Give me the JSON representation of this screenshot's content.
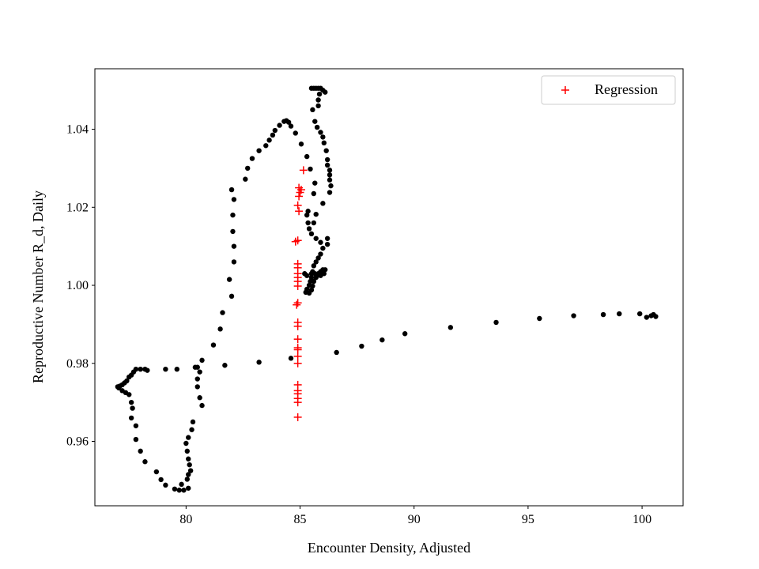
{
  "chart_data": {
    "type": "scatter",
    "xlabel": "Encounter Density, Adjusted",
    "ylabel": "Reproductive Number R_d, Daily",
    "xlim": [
      76.0,
      101.8
    ],
    "ylim": [
      0.9435,
      1.0555
    ],
    "xticks": [
      80,
      85,
      90,
      95,
      100
    ],
    "yticks": [
      0.96,
      0.98,
      1.0,
      1.02,
      1.04
    ],
    "ytick_labels": [
      "0.96",
      "0.98",
      "1.00",
      "1.02",
      "1.04"
    ],
    "grid": false,
    "legend": {
      "placement": "top-right",
      "entries": [
        {
          "label": "Regression",
          "series": 1
        }
      ]
    },
    "series": [
      {
        "marker": "dot",
        "color": "#000000",
        "points": [
          [
            100.6,
            0.992
          ],
          [
            100.5,
            0.9925
          ],
          [
            100.4,
            0.9922
          ],
          [
            100.2,
            0.9918
          ],
          [
            99.9,
            0.9927
          ],
          [
            99.0,
            0.9927
          ],
          [
            98.3,
            0.9925
          ],
          [
            97.0,
            0.9922
          ],
          [
            95.5,
            0.9915
          ],
          [
            93.6,
            0.9905
          ],
          [
            91.6,
            0.9892
          ],
          [
            89.6,
            0.9876
          ],
          [
            88.6,
            0.986
          ],
          [
            87.7,
            0.9844
          ],
          [
            86.6,
            0.9828
          ],
          [
            84.6,
            0.9813
          ],
          [
            83.2,
            0.9803
          ],
          [
            81.7,
            0.9795
          ],
          [
            80.7,
            0.9808
          ],
          [
            80.6,
            0.9778
          ],
          [
            80.4,
            0.979
          ],
          [
            79.6,
            0.9785
          ],
          [
            79.1,
            0.9785
          ],
          [
            78.3,
            0.9782
          ],
          [
            78.2,
            0.9785
          ],
          [
            78.0,
            0.9785
          ],
          [
            77.8,
            0.9785
          ],
          [
            77.7,
            0.9778
          ],
          [
            77.6,
            0.977
          ],
          [
            77.5,
            0.9765
          ],
          [
            77.4,
            0.9755
          ],
          [
            77.3,
            0.975
          ],
          [
            77.2,
            0.9745
          ],
          [
            77.1,
            0.9742
          ],
          [
            77.0,
            0.974
          ],
          [
            77.05,
            0.9737
          ],
          [
            77.2,
            0.973
          ],
          [
            77.35,
            0.9725
          ],
          [
            77.5,
            0.972
          ],
          [
            77.6,
            0.97
          ],
          [
            77.65,
            0.9685
          ],
          [
            77.6,
            0.966
          ],
          [
            77.8,
            0.964
          ],
          [
            77.8,
            0.9605
          ],
          [
            78.0,
            0.9575
          ],
          [
            78.2,
            0.9548
          ],
          [
            78.7,
            0.9522
          ],
          [
            78.9,
            0.9502
          ],
          [
            79.1,
            0.9488
          ],
          [
            79.5,
            0.9478
          ],
          [
            79.7,
            0.9475
          ],
          [
            79.8,
            0.949
          ],
          [
            79.9,
            0.9475
          ],
          [
            80.1,
            0.948
          ],
          [
            80.05,
            0.9503
          ],
          [
            80.1,
            0.9515
          ],
          [
            80.2,
            0.9525
          ],
          [
            80.15,
            0.954
          ],
          [
            80.1,
            0.9555
          ],
          [
            80.05,
            0.9575
          ],
          [
            80.0,
            0.9595
          ],
          [
            80.1,
            0.961
          ],
          [
            80.25,
            0.963
          ],
          [
            80.3,
            0.965
          ],
          [
            80.7,
            0.9692
          ],
          [
            80.6,
            0.9712
          ],
          [
            80.5,
            0.974
          ],
          [
            80.5,
            0.976
          ],
          [
            80.5,
            0.979
          ],
          [
            81.2,
            0.9847
          ],
          [
            81.5,
            0.9888
          ],
          [
            81.6,
            0.993
          ],
          [
            82.0,
            0.9972
          ],
          [
            81.9,
            1.0015
          ],
          [
            82.1,
            1.006
          ],
          [
            82.1,
            1.01
          ],
          [
            82.05,
            1.0138
          ],
          [
            82.05,
            1.018
          ],
          [
            82.1,
            1.022
          ],
          [
            82.0,
            1.0245
          ],
          [
            82.6,
            1.0272
          ],
          [
            82.7,
            1.03
          ],
          [
            82.9,
            1.0325
          ],
          [
            83.2,
            1.0345
          ],
          [
            83.5,
            1.0358
          ],
          [
            83.65,
            1.0372
          ],
          [
            83.8,
            1.0385
          ],
          [
            83.9,
            1.0397
          ],
          [
            84.1,
            1.041
          ],
          [
            84.3,
            1.042
          ],
          [
            84.4,
            1.0422
          ],
          [
            84.5,
            1.0418
          ],
          [
            84.6,
            1.0408
          ],
          [
            84.8,
            1.039
          ],
          [
            85.05,
            1.0362
          ],
          [
            85.3,
            1.033
          ],
          [
            85.45,
            1.0298
          ],
          [
            85.65,
            1.0262
          ],
          [
            85.6,
            1.0235
          ],
          [
            85.35,
            1.019
          ],
          [
            85.3,
            1.018
          ],
          [
            85.35,
            1.016
          ],
          [
            85.4,
            1.0145
          ],
          [
            85.5,
            1.0132
          ],
          [
            85.7,
            1.012
          ],
          [
            85.9,
            1.011
          ],
          [
            86.2,
            1.0105
          ],
          [
            86.2,
            1.012
          ],
          [
            86.0,
            1.0095
          ],
          [
            85.9,
            1.008
          ],
          [
            85.8,
            1.007
          ],
          [
            85.7,
            1.006
          ],
          [
            85.6,
            1.005
          ],
          [
            85.55,
            1.0035
          ],
          [
            85.5,
            1.002
          ],
          [
            85.45,
            1.001
          ],
          [
            85.4,
            1.0
          ],
          [
            85.3,
            0.999
          ],
          [
            85.25,
            0.9982
          ],
          [
            85.4,
            0.998
          ],
          [
            85.5,
            0.9988
          ],
          [
            85.55,
            0.9998
          ],
          [
            85.6,
            1.001
          ],
          [
            85.7,
            1.002
          ],
          [
            85.8,
            1.003
          ],
          [
            85.9,
            1.0035
          ],
          [
            86.0,
            1.004
          ],
          [
            86.05,
            1.003
          ],
          [
            86.1,
            1.004
          ],
          [
            85.9,
            1.0025
          ],
          [
            85.75,
            1.0025
          ],
          [
            85.65,
            1.003
          ],
          [
            85.5,
            1.003
          ],
          [
            85.3,
            1.0025
          ],
          [
            85.2,
            1.003
          ],
          [
            85.6,
            1.016
          ],
          [
            85.7,
            1.0182
          ],
          [
            86.0,
            1.021
          ],
          [
            86.3,
            1.0238
          ],
          [
            86.35,
            1.0255
          ],
          [
            86.3,
            1.027
          ],
          [
            86.3,
            1.0283
          ],
          [
            86.3,
            1.0295
          ],
          [
            86.2,
            1.0308
          ],
          [
            86.2,
            1.0322
          ],
          [
            86.15,
            1.0345
          ],
          [
            86.05,
            1.0365
          ],
          [
            86.0,
            1.038
          ],
          [
            85.9,
            1.0392
          ],
          [
            85.75,
            1.0405
          ],
          [
            85.65,
            1.042
          ],
          [
            85.55,
            1.045
          ],
          [
            85.8,
            1.046
          ],
          [
            85.8,
            1.0475
          ],
          [
            85.85,
            1.049
          ],
          [
            86.0,
            1.05
          ],
          [
            86.1,
            1.0495
          ],
          [
            85.9,
            1.0505
          ],
          [
            85.7,
            1.0505
          ],
          [
            85.5,
            1.0505
          ],
          [
            85.6,
            1.0505
          ],
          [
            85.8,
            1.0505
          ]
        ]
      },
      {
        "name": "Regression",
        "marker": "plus",
        "color": "#ff0000",
        "points": [
          [
            85.15,
            1.0295
          ],
          [
            85.05,
            1.0245
          ],
          [
            84.95,
            1.025
          ],
          [
            85.0,
            1.0238
          ],
          [
            84.95,
            1.0228
          ],
          [
            84.9,
            1.0205
          ],
          [
            84.95,
            1.019
          ],
          [
            84.9,
            1.0115
          ],
          [
            84.8,
            1.0112
          ],
          [
            84.9,
            1.0055
          ],
          [
            84.9,
            1.0045
          ],
          [
            84.9,
            1.003
          ],
          [
            84.9,
            1.002
          ],
          [
            84.9,
            1.001
          ],
          [
            84.9,
            0.9998
          ],
          [
            84.9,
            0.9955
          ],
          [
            84.85,
            0.995
          ],
          [
            84.9,
            0.9905
          ],
          [
            84.9,
            0.9895
          ],
          [
            84.9,
            0.9862
          ],
          [
            84.9,
            0.984
          ],
          [
            84.9,
            0.9835
          ],
          [
            84.9,
            0.9818
          ],
          [
            84.9,
            0.98
          ],
          [
            84.9,
            0.9745
          ],
          [
            84.9,
            0.973
          ],
          [
            84.9,
            0.9722
          ],
          [
            84.9,
            0.971
          ],
          [
            84.9,
            0.97
          ],
          [
            84.9,
            0.9662
          ]
        ]
      }
    ]
  }
}
